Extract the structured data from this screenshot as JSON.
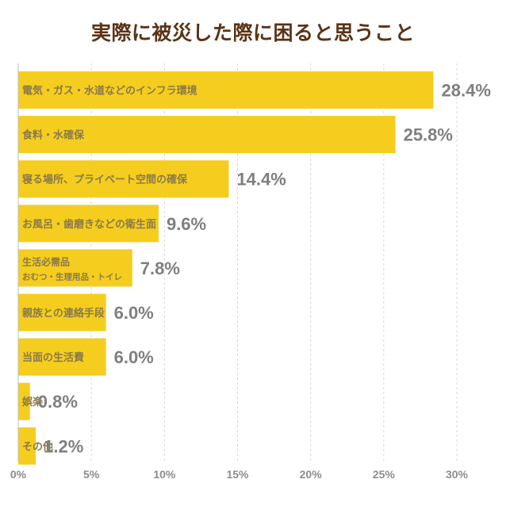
{
  "chart_data": {
    "type": "bar",
    "orientation": "horizontal",
    "title": "実際に被災した際に困ると思うこと",
    "categories": [
      "電気・ガス・水道などのインフラ環境",
      "食料・水確保",
      "寝る場所、プライベート空間の確保",
      "お風呂・歯磨きなどの衛生面",
      "生活必需品",
      "親族との連絡手段",
      "当面の生活費",
      "娯楽",
      "その他"
    ],
    "sublabels": [
      "",
      "",
      "",
      "",
      "おむつ・生理用品・トイレ",
      "",
      "",
      "",
      ""
    ],
    "values": [
      28.4,
      25.8,
      14.4,
      9.6,
      7.8,
      6.0,
      6.0,
      0.8,
      1.2
    ],
    "value_labels": [
      "28.4%",
      "25.8%",
      "14.4%",
      "9.6%",
      "7.8%",
      "6.0%",
      "6.0%",
      "0.8%",
      "1.2%"
    ],
    "xlim": [
      0,
      30
    ],
    "x_ticks": [
      0,
      5,
      10,
      15,
      20,
      25,
      30
    ],
    "x_tick_labels": [
      "0%",
      "5%",
      "10%",
      "15%",
      "20%",
      "25%",
      "30%"
    ],
    "grid": true,
    "xlabel": "",
    "ylabel": "",
    "bar_color": "#f5cd1e",
    "grid_color": "#d9d9d9"
  }
}
